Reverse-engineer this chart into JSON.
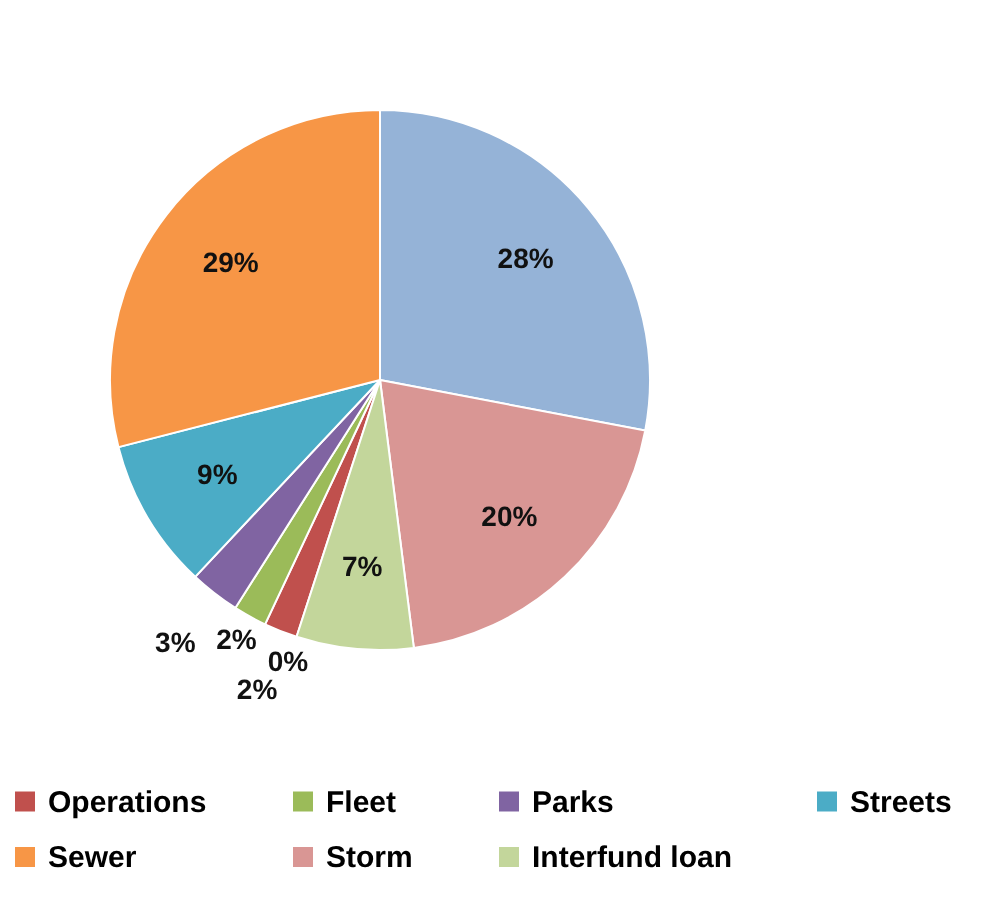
{
  "chart_data": {
    "type": "pie",
    "categories": [
      null,
      "Operations",
      "Fleet",
      "Parks",
      "Streets",
      "Sewer",
      null,
      "Storm",
      "Interfund loan"
    ],
    "values": [
      0,
      2,
      2,
      3,
      9,
      29,
      28,
      20,
      7
    ],
    "colors": [
      "#4f81bd",
      "#c0504d",
      "#9bbb59",
      "#8064a2",
      "#4bacc6",
      "#f79646",
      "#95b3d7",
      "#d99694",
      "#c3d69b"
    ],
    "value_labels": [
      "0%",
      "2%",
      "2%",
      "3%",
      "9%",
      "29%",
      "28%",
      "20%",
      "7%"
    ],
    "legend": "bottom"
  }
}
